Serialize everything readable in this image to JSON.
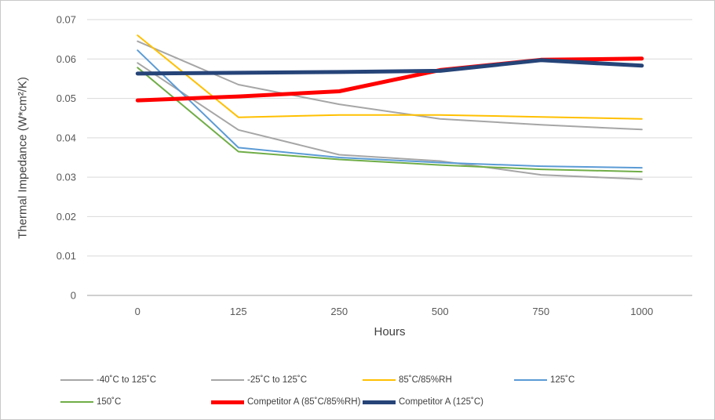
{
  "chart_data": {
    "type": "line",
    "title": "",
    "xlabel": "Hours",
    "ylabel": "Thermal Impedance (W*cm²/K)",
    "x_categories": [
      "0",
      "125",
      "250",
      "500",
      "750",
      "1000"
    ],
    "ylim": [
      0,
      0.07
    ],
    "y_ticks": [
      0,
      0.01,
      0.02,
      0.03,
      0.04,
      0.05,
      0.06,
      0.07
    ],
    "y_tick_labels": [
      "0",
      "0.01",
      "0.02",
      "0.03",
      "0.04",
      "0.05",
      "0.06",
      "0.07"
    ],
    "grid": "horizontal",
    "legend_position": "bottom",
    "series": [
      {
        "name": "-40˚C to 125˚C",
        "color": "#A6A6A6",
        "line_width": 2,
        "values": [
          0.0645,
          0.0535,
          0.0485,
          0.0448,
          0.0433,
          0.0421
        ]
      },
      {
        "name": "-25˚C to 125˚C",
        "color": "#A6A6A6",
        "line_width": 2,
        "values": [
          0.059,
          0.042,
          0.0357,
          0.0341,
          0.0306,
          0.0295
        ]
      },
      {
        "name": "85˚C/85%RH",
        "color": "#FFC000",
        "line_width": 2,
        "values": [
          0.066,
          0.0452,
          0.0458,
          0.0458,
          0.0453,
          0.0448
        ]
      },
      {
        "name": "125˚C",
        "color": "#5B9BD5",
        "line_width": 2,
        "values": [
          0.0622,
          0.0375,
          0.035,
          0.0337,
          0.0328,
          0.0324
        ]
      },
      {
        "name": "150˚C",
        "color": "#70AD47",
        "line_width": 2,
        "values": [
          0.0578,
          0.0365,
          0.0345,
          0.0331,
          0.032,
          0.0314
        ]
      },
      {
        "name": "Competitor A (85˚C/85%RH)",
        "color": "#FF0000",
        "line_width": 5,
        "values": [
          0.0495,
          0.0505,
          0.0518,
          0.0572,
          0.0598,
          0.0601
        ]
      },
      {
        "name": "Competitor A (125˚C)",
        "color": "#264478",
        "line_width": 5,
        "values": [
          0.0563,
          0.0565,
          0.0567,
          0.057,
          0.0597,
          0.0583
        ]
      }
    ],
    "legend_rows": [
      [
        0,
        1,
        2,
        3
      ],
      [
        4,
        5,
        6
      ]
    ]
  },
  "layout_colors": {
    "gridline": "#D9D9D9",
    "axis_line": "#BFBFBF",
    "tick_text": "#595959",
    "axis_title_text": "#404040",
    "background": "#FFFFFF",
    "frame_border": "#C9C9C9"
  }
}
